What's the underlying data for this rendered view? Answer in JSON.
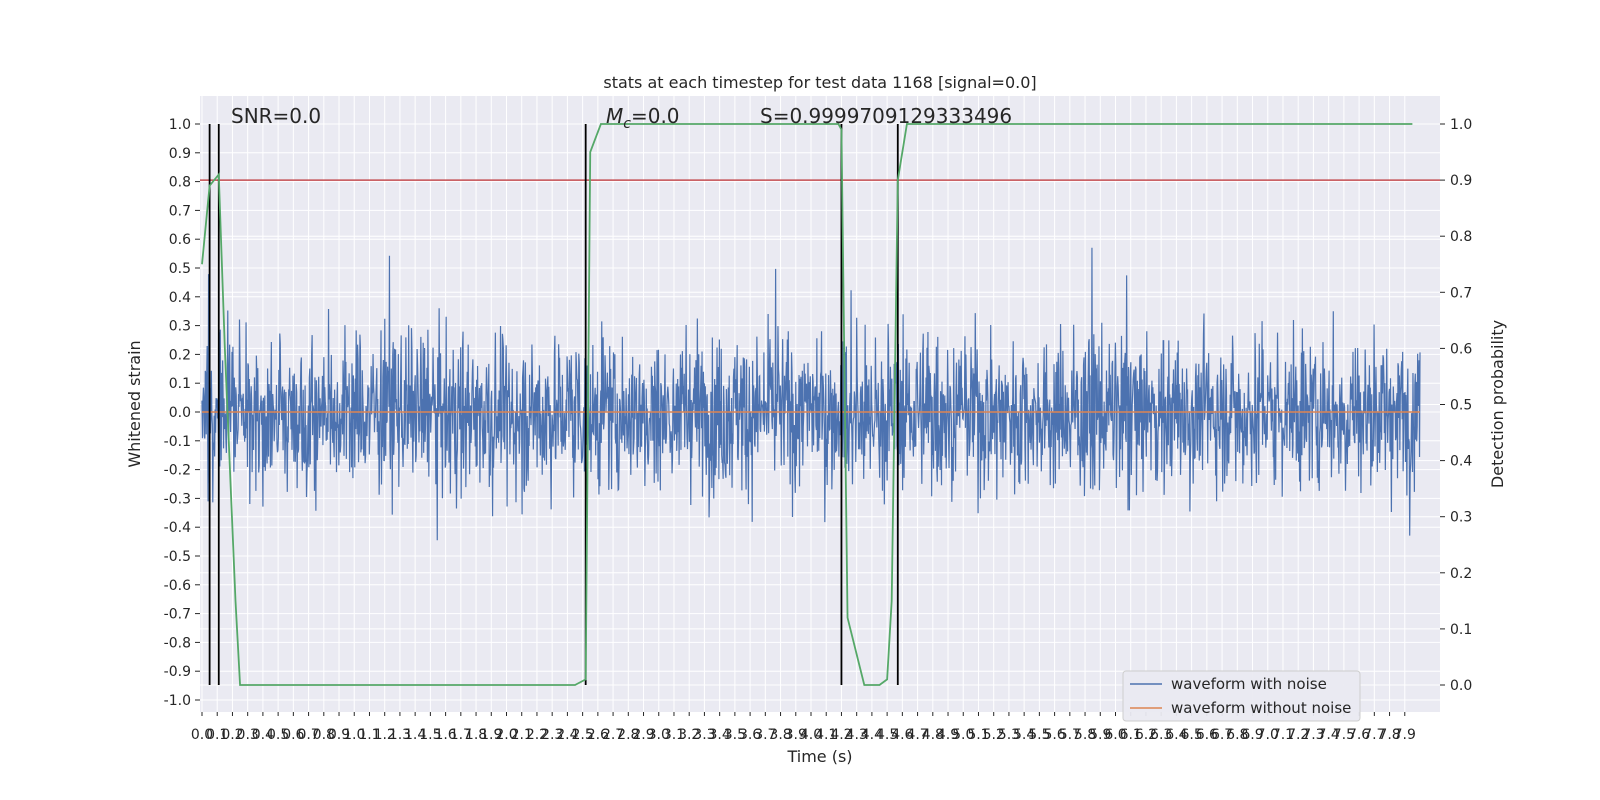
{
  "chart_data": {
    "type": "line",
    "title": "stats at each timestep for test data 1168 [signal=0.0]",
    "xlabel": "Time (s)",
    "ylabel_left": "Whitened strain",
    "ylabel_right": "Detection probability",
    "xlim": [
      0.0,
      8.0
    ],
    "ylim_left": [
      -1.0,
      1.0
    ],
    "ylim_right": [
      0.0,
      1.0
    ],
    "x_ticks": [
      "0.0",
      "0.1",
      "0.2",
      "0.3",
      "0.4",
      "0.5",
      "0.6",
      "0.7",
      "0.8",
      "0.9",
      "1.0",
      "1.1",
      "1.2",
      "1.3",
      "1.4",
      "1.5",
      "1.6",
      "1.7",
      "1.8",
      "1.9",
      "2.0",
      "2.1",
      "2.2",
      "2.3",
      "2.4",
      "2.5",
      "2.6",
      "2.7",
      "2.8",
      "2.9",
      "3.0",
      "3.1",
      "3.2",
      "3.3",
      "3.4",
      "3.5",
      "3.6",
      "3.7",
      "3.8",
      "3.9",
      "4.0",
      "4.1",
      "4.2",
      "4.3",
      "4.4",
      "4.5",
      "4.6",
      "4.7",
      "4.8",
      "4.9",
      "5.0",
      "5.1",
      "5.2",
      "5.3",
      "5.4",
      "5.5",
      "5.6",
      "5.7",
      "5.8",
      "5.9",
      "6.0",
      "6.1",
      "6.2",
      "6.3",
      "6.4",
      "6.5",
      "6.6",
      "6.7",
      "6.8",
      "6.9",
      "7.0",
      "7.1",
      "7.2",
      "7.3",
      "7.4",
      "7.5",
      "7.6",
      "7.7",
      "7.8",
      "7.9"
    ],
    "y_ticks_left": [
      "1.0",
      "0.9",
      "0.8",
      "0.7",
      "0.6",
      "0.5",
      "0.4",
      "0.3",
      "0.2",
      "0.1",
      "0.0",
      "-0.1",
      "-0.2",
      "-0.3",
      "-0.4",
      "-0.5",
      "-0.6",
      "-0.7",
      "-0.8",
      "-0.9",
      "-1.0"
    ],
    "y_ticks_right": [
      "1.0",
      "0.9",
      "0.8",
      "0.7",
      "0.6",
      "0.5",
      "0.4",
      "0.3",
      "0.2",
      "0.1",
      "0.0"
    ],
    "annotations": {
      "snr": "SNR=0.0",
      "mc": "=0.0",
      "mc_symbol": "M",
      "mc_sub": "c",
      "s": "S=0.9999709129333496"
    },
    "threshold_line": {
      "axis": "right",
      "value": 0.9,
      "color": "#c44e52"
    },
    "event_lines_x": [
      0.05,
      0.11,
      2.52,
      4.2,
      4.57
    ],
    "series": [
      {
        "name": "waveform with noise",
        "color": "#4c72b0",
        "axis": "left",
        "amplitude_note": "dense noise trace, typical |y| ~ 0.3-0.5, peaks ~ 1.0 / troughs ~ -0.96"
      },
      {
        "name": "waveform without noise",
        "color": "#dd8452",
        "axis": "left",
        "x": [
          0.0,
          8.0
        ],
        "values": [
          0.0,
          0.0
        ]
      },
      {
        "color": "#55a868",
        "axis": "right",
        "x": [
          0.0,
          0.05,
          0.11,
          0.15,
          0.22,
          0.25,
          1.3,
          2.45,
          2.52,
          2.55,
          2.62,
          2.75,
          3.5,
          4.18,
          4.2,
          4.24,
          4.35,
          4.45,
          4.5,
          4.53,
          4.57,
          4.63,
          6.0,
          7.95
        ],
        "values": [
          0.75,
          0.89,
          0.91,
          0.6,
          0.15,
          0.0,
          0.0,
          0.0,
          0.01,
          0.95,
          1.0,
          1.0,
          1.0,
          1.0,
          0.99,
          0.12,
          0.0,
          0.0,
          0.01,
          0.15,
          0.9,
          1.0,
          1.0,
          1.0
        ]
      }
    ],
    "legend": {
      "placement": "lower-right",
      "entries": [
        "waveform with noise",
        "waveform without noise"
      ]
    },
    "grid": true,
    "background": "#eaeaf2"
  }
}
